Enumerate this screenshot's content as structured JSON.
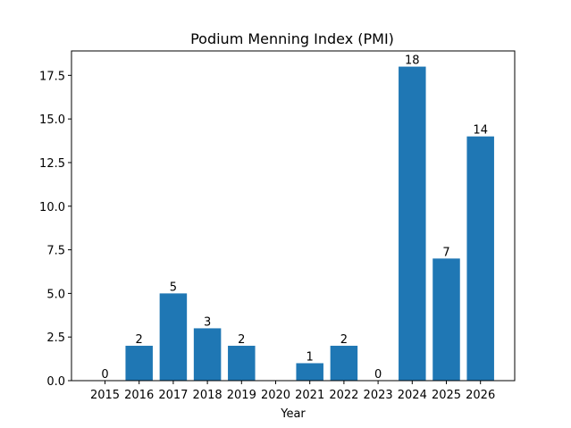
{
  "chart_data": {
    "type": "bar",
    "title": "Podium Menning Index (PMI)",
    "xlabel": "Year",
    "ylabel": "",
    "categories": [
      "2015",
      "2016",
      "2017",
      "2018",
      "2019",
      "2020",
      "2021",
      "2022",
      "2023",
      "2024",
      "2025",
      "2026"
    ],
    "values": [
      0,
      2,
      5,
      3,
      2,
      null,
      1,
      2,
      0,
      18,
      7,
      14
    ],
    "data_labels": [
      "0",
      "2",
      "5",
      "3",
      "2",
      "",
      "1",
      "2",
      "0",
      "18",
      "7",
      "14"
    ],
    "ylim": [
      0,
      18.9
    ],
    "yticks": [
      0.0,
      2.5,
      5.0,
      7.5,
      10.0,
      12.5,
      15.0,
      17.5
    ],
    "ytick_labels": [
      "0.0",
      "2.5",
      "5.0",
      "7.5",
      "10.0",
      "12.5",
      "15.0",
      "17.5"
    ],
    "bar_color": "#1f77b4",
    "grid": false,
    "legend": "none"
  }
}
